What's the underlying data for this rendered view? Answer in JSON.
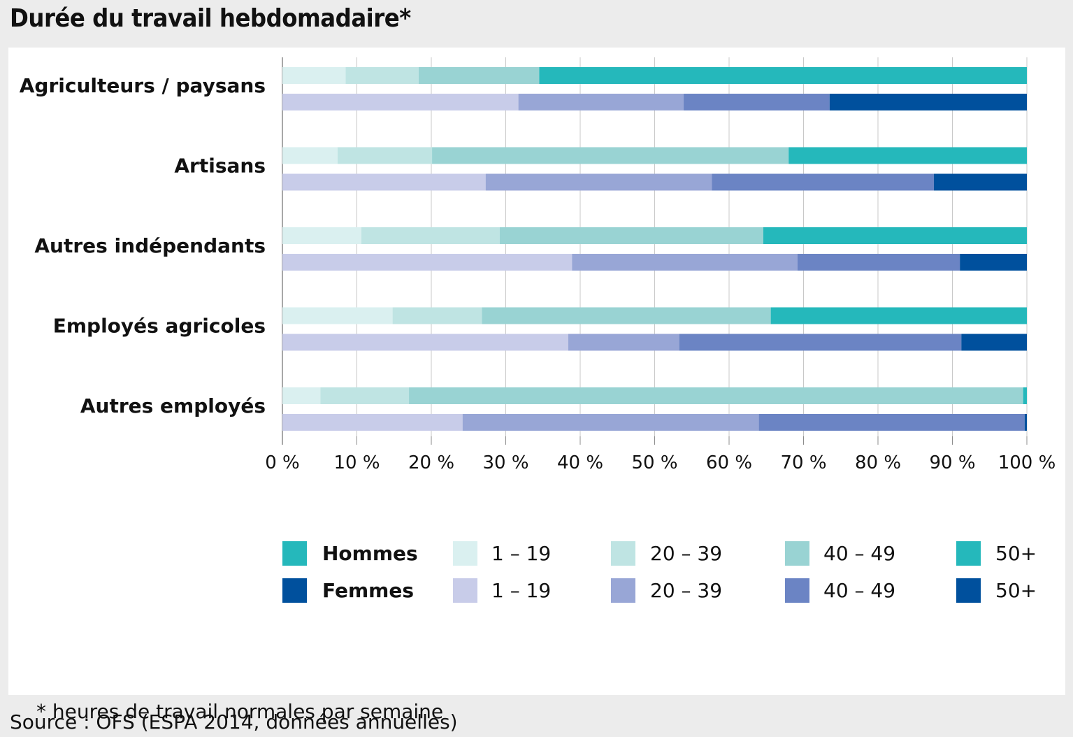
{
  "title": "Durée du travail hebdomadaire*",
  "footnote": "* heures de travail normales par semaine",
  "source": "Source : OFS (ESPA 2014, données annuelles)",
  "colors": {
    "Hommes": [
      "#daf0f0",
      "#bfe4e3",
      "#99d3d3",
      "#25b8bb"
    ],
    "Femmes": [
      "#c8cce9",
      "#98a6d6",
      "#6b84c4",
      "#00509d"
    ],
    "gridline": "#c8c8c8",
    "axis": "#8c8c8c"
  },
  "chart_data": {
    "type": "bar",
    "orientation": "horizontal",
    "stacked": "percent",
    "title": "Durée du travail hebdomadaire*",
    "categories": [
      "Agriculteurs / paysans",
      "Artisans",
      "Autres indépendants",
      "Employés agricoles",
      "Autres employés"
    ],
    "groups": [
      "Hommes",
      "Femmes"
    ],
    "segments": [
      "1 – 19",
      "20 – 39",
      "40 – 49",
      "50+"
    ],
    "series": [
      {
        "name": "Hommes",
        "segments": [
          [
            8.5,
            9.8,
            16.2,
            65.5
          ],
          [
            7.4,
            12.7,
            47.9,
            32.0
          ],
          [
            10.6,
            18.6,
            35.4,
            35.4
          ],
          [
            14.8,
            12.0,
            38.8,
            34.4
          ],
          [
            5.1,
            11.9,
            82.5,
            0.5
          ]
        ]
      },
      {
        "name": "Femmes",
        "segments": [
          [
            31.7,
            22.2,
            19.6,
            26.5
          ],
          [
            27.3,
            30.4,
            29.8,
            12.5
          ],
          [
            38.9,
            30.3,
            21.8,
            9.0
          ],
          [
            38.4,
            14.9,
            37.9,
            8.8
          ],
          [
            24.2,
            39.8,
            35.7,
            0.3
          ]
        ]
      }
    ],
    "xlim": [
      0,
      100
    ],
    "xticks": [
      "0 %",
      "10 %",
      "20 %",
      "30 %",
      "40 %",
      "50 %",
      "60 %",
      "70 %",
      "80 %",
      "90 %",
      "100 %"
    ],
    "grid": true,
    "legend": {
      "position": "bottom",
      "rows": [
        {
          "group": "Hommes",
          "items": [
            "1 – 19",
            "20 – 39",
            "40 – 49",
            "50+"
          ]
        },
        {
          "group": "Femmes",
          "items": [
            "1 – 19",
            "20 – 39",
            "40 – 49",
            "50+"
          ]
        }
      ]
    }
  }
}
